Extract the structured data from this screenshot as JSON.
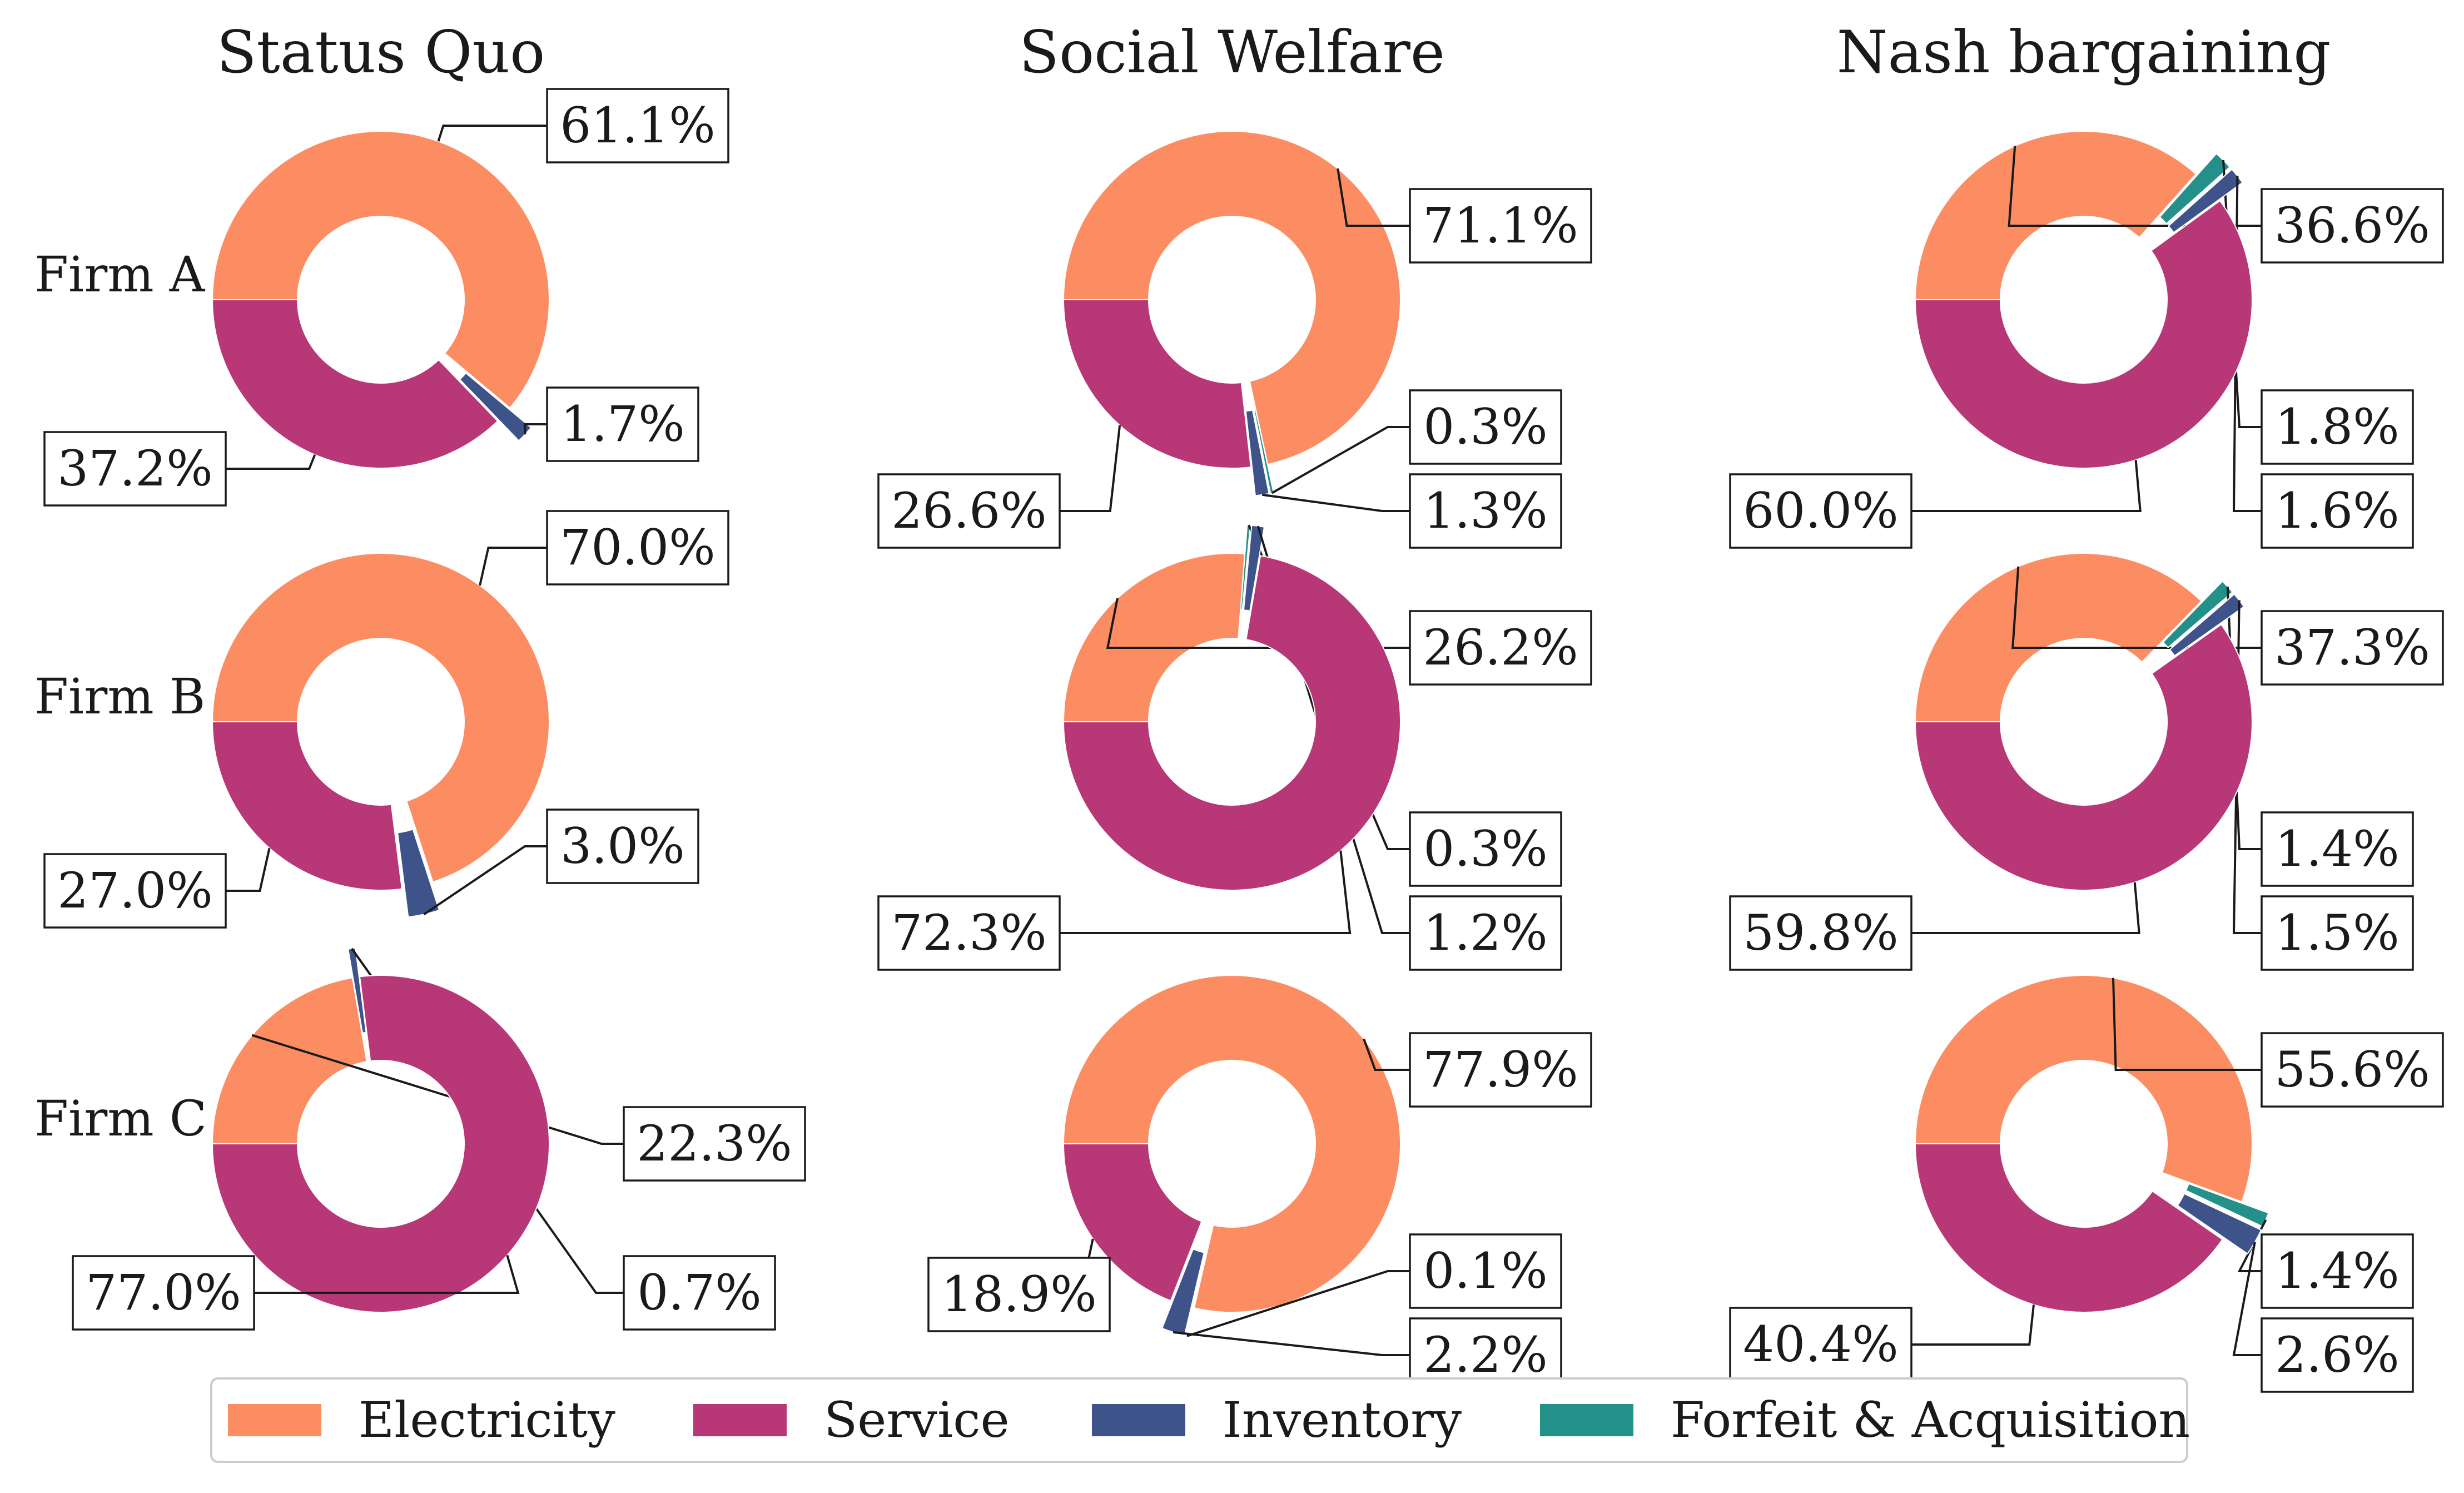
{
  "chart_data": {
    "type": "pie",
    "subtype": "donut",
    "columns": [
      "Status Quo",
      "Social Welfare",
      "Nash bargaining"
    ],
    "rows": [
      "Firm A",
      "Firm B",
      "Firm C"
    ],
    "legend": {
      "placement": "bottom-center",
      "entries": [
        {
          "name": "Electricity",
          "color": "#fc8d62"
        },
        {
          "name": "Service",
          "color": "#b83776"
        },
        {
          "name": "Inventory",
          "color": "#3e5389"
        },
        {
          "name": "Forfeit & Acquisition",
          "color": "#23918a"
        }
      ]
    },
    "charts": [
      {
        "column": "Status Quo",
        "row": "Firm A",
        "slices": [
          {
            "category": "Electricity",
            "value": 61.1,
            "label": "61.1%"
          },
          {
            "category": "Inventory",
            "value": 1.7,
            "label": "1.7%"
          },
          {
            "category": "Service",
            "value": 37.2,
            "label": "37.2%"
          }
        ]
      },
      {
        "column": "Social Welfare",
        "row": "Firm A",
        "slices": [
          {
            "category": "Electricity",
            "value": 71.1,
            "label": "71.1%"
          },
          {
            "category": "Forfeit & Acquisition",
            "value": 0.3,
            "label": "0.3%"
          },
          {
            "category": "Inventory",
            "value": 1.3,
            "label": "1.3%"
          },
          {
            "category": "Service",
            "value": 26.6,
            "label": "26.6%"
          }
        ]
      },
      {
        "column": "Nash bargaining",
        "row": "Firm A",
        "slices": [
          {
            "category": "Electricity",
            "value": 36.6,
            "label": "36.6%"
          },
          {
            "category": "Forfeit & Acquisition",
            "value": 1.8,
            "label": "1.8%"
          },
          {
            "category": "Inventory",
            "value": 1.6,
            "label": "1.6%"
          },
          {
            "category": "Service",
            "value": 60.0,
            "label": "60.0%"
          }
        ]
      },
      {
        "column": "Status Quo",
        "row": "Firm B",
        "slices": [
          {
            "category": "Electricity",
            "value": 70.0,
            "label": "70.0%"
          },
          {
            "category": "Inventory",
            "value": 3.0,
            "label": "3.0%"
          },
          {
            "category": "Service",
            "value": 27.0,
            "label": "27.0%"
          }
        ]
      },
      {
        "column": "Social Welfare",
        "row": "Firm B",
        "slices": [
          {
            "category": "Electricity",
            "value": 26.2,
            "label": "26.2%"
          },
          {
            "category": "Forfeit & Acquisition",
            "value": 0.3,
            "label": "0.3%"
          },
          {
            "category": "Inventory",
            "value": 1.2,
            "label": "1.2%"
          },
          {
            "category": "Service",
            "value": 72.3,
            "label": "72.3%"
          }
        ]
      },
      {
        "column": "Nash bargaining",
        "row": "Firm B",
        "slices": [
          {
            "category": "Electricity",
            "value": 37.3,
            "label": "37.3%"
          },
          {
            "category": "Forfeit & Acquisition",
            "value": 1.4,
            "label": "1.4%"
          },
          {
            "category": "Inventory",
            "value": 1.5,
            "label": "1.5%"
          },
          {
            "category": "Service",
            "value": 59.8,
            "label": "59.8%"
          }
        ]
      },
      {
        "column": "Status Quo",
        "row": "Firm C",
        "slices": [
          {
            "category": "Electricity",
            "value": 22.3,
            "label": "22.3%"
          },
          {
            "category": "Inventory",
            "value": 0.7,
            "label": "0.7%"
          },
          {
            "category": "Service",
            "value": 77.0,
            "label": "77.0%"
          }
        ]
      },
      {
        "column": "Social Welfare",
        "row": "Firm C",
        "slices": [
          {
            "category": "Electricity",
            "value": 77.9,
            "label": "77.9%"
          },
          {
            "category": "Forfeit & Acquisition",
            "value": 0.1,
            "label": "0.1%"
          },
          {
            "category": "Inventory",
            "value": 2.2,
            "label": "2.2%"
          },
          {
            "category": "Service",
            "value": 18.9,
            "label": "18.9%"
          }
        ]
      },
      {
        "column": "Nash bargaining",
        "row": "Firm C",
        "slices": [
          {
            "category": "Electricity",
            "value": 55.6,
            "label": "55.6%"
          },
          {
            "category": "Forfeit & Acquisition",
            "value": 1.4,
            "label": "1.4%"
          },
          {
            "category": "Inventory",
            "value": 2.6,
            "label": "2.6%"
          },
          {
            "category": "Service",
            "value": 40.4,
            "label": "40.4%"
          }
        ]
      }
    ]
  }
}
